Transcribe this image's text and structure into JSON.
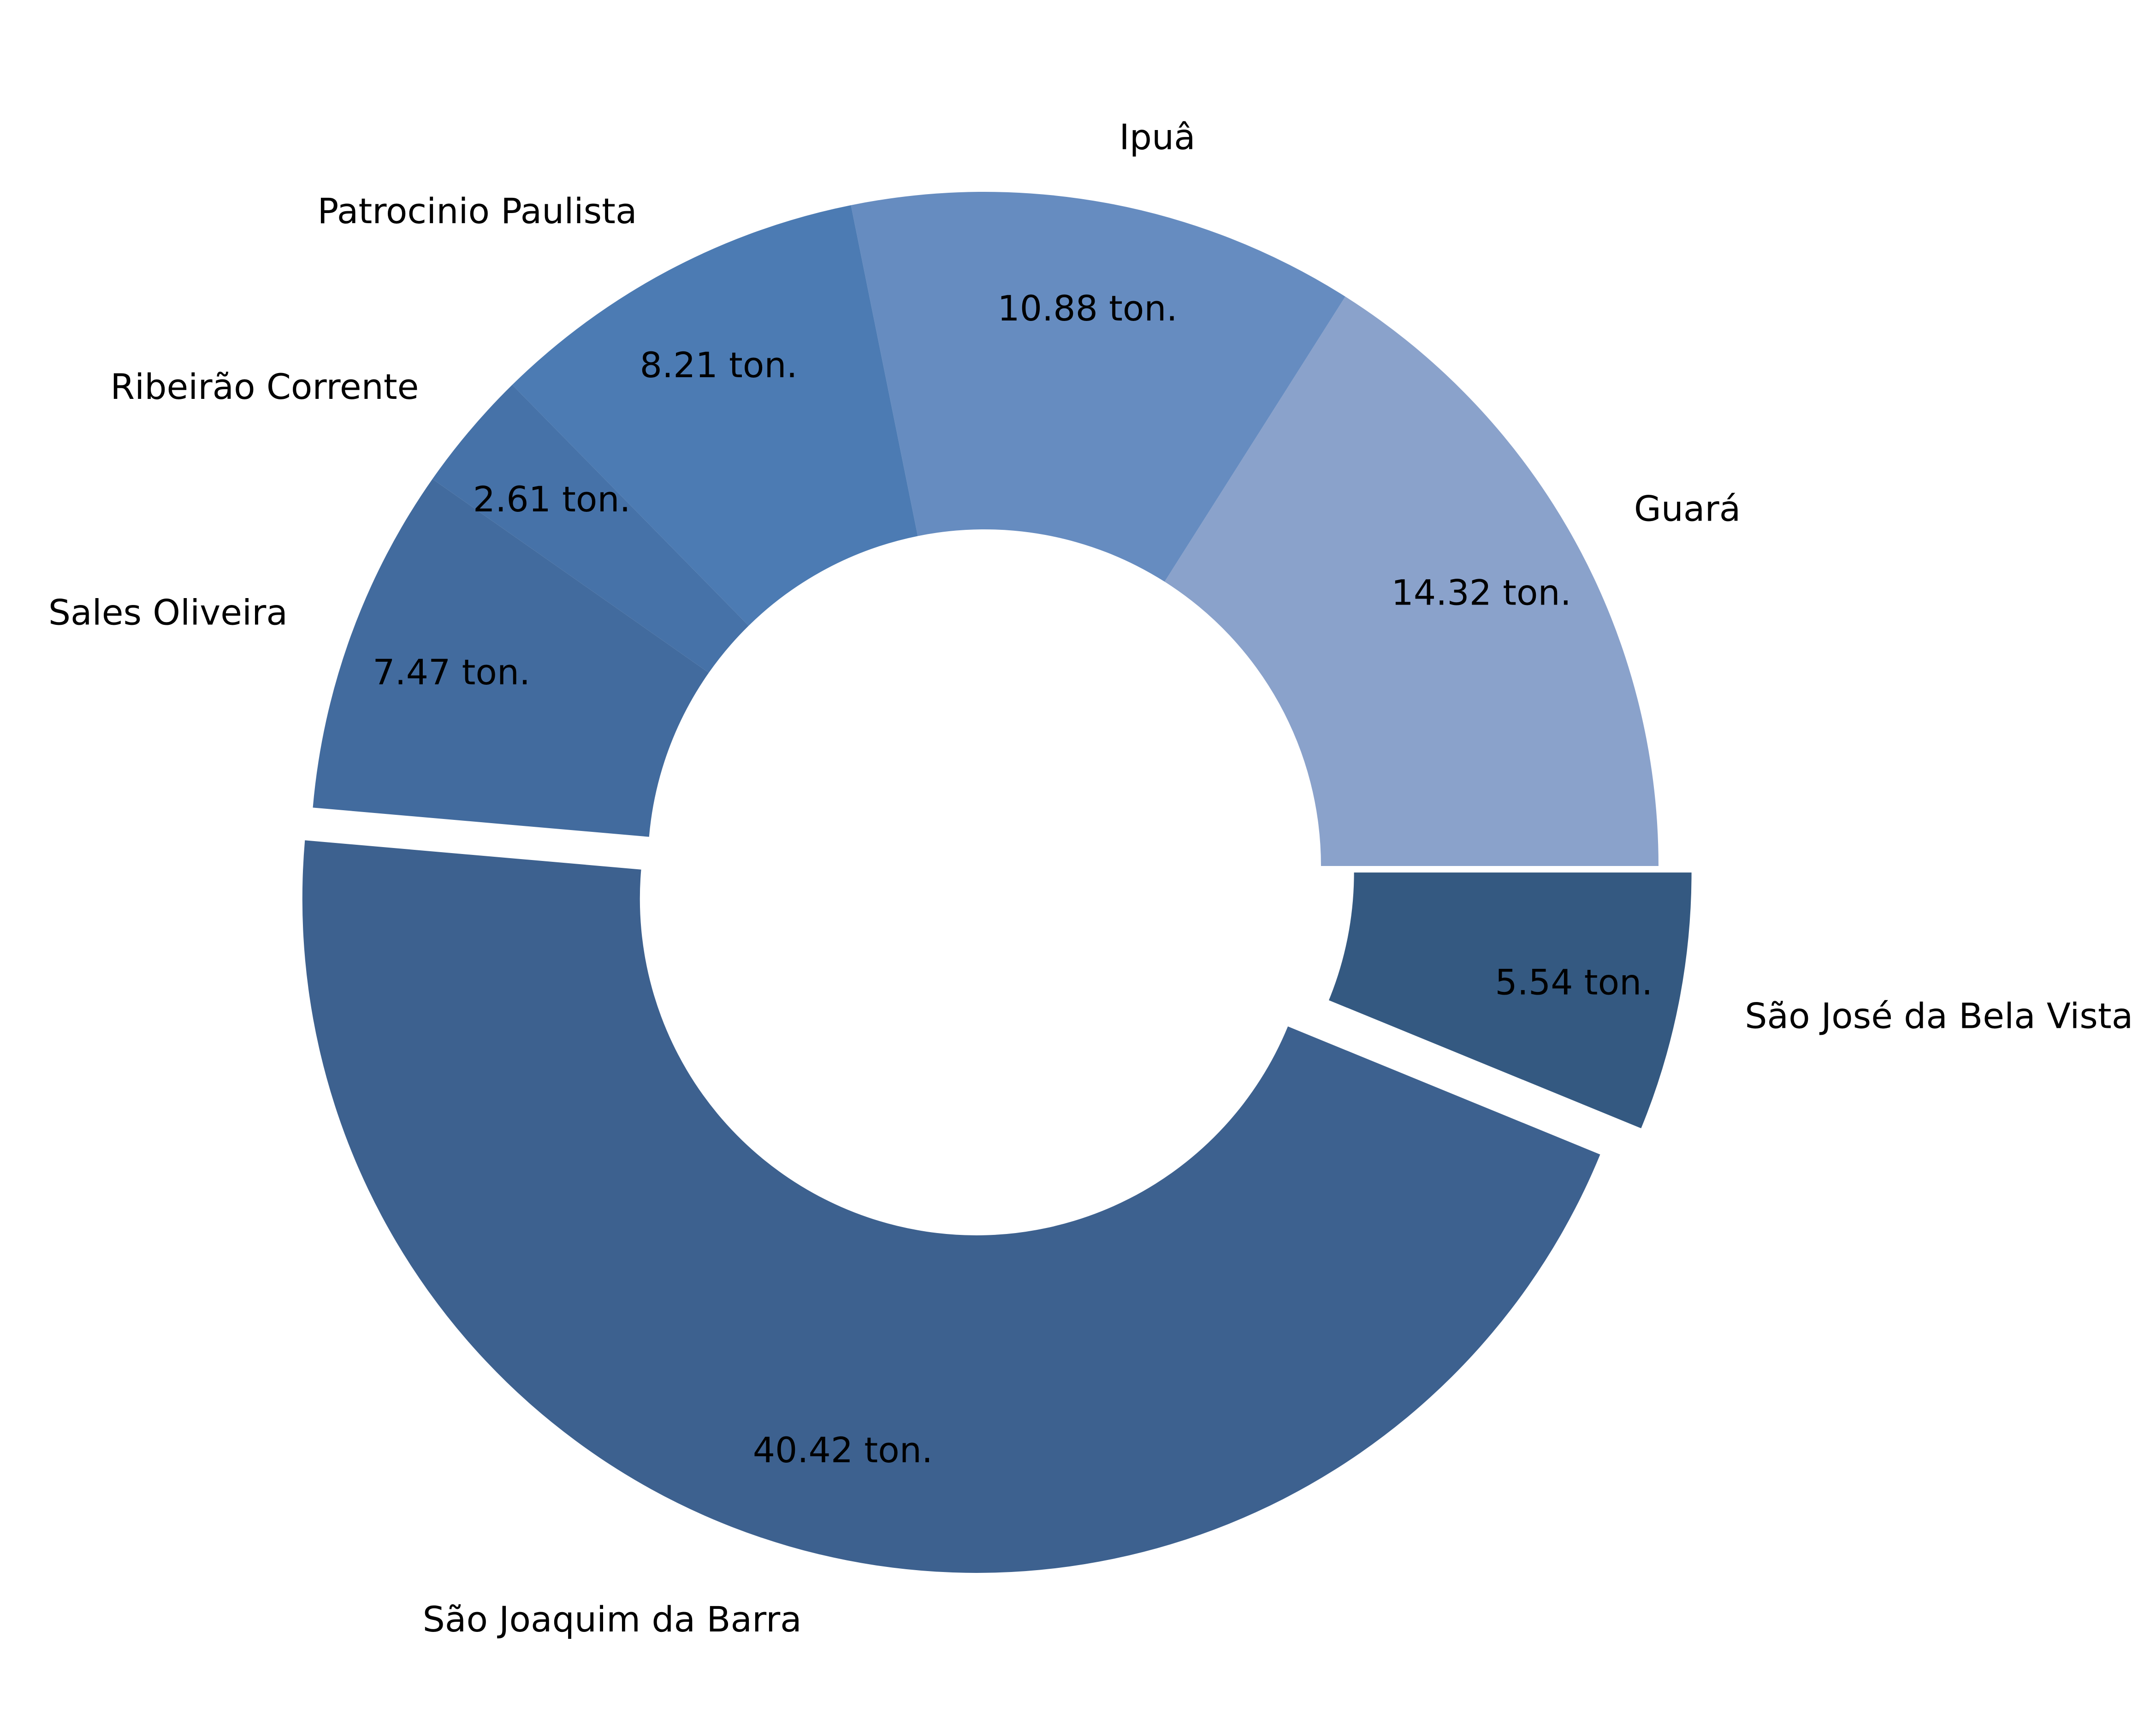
{
  "chart_data": {
    "type": "pie",
    "donut": true,
    "start_angle_deg": 0,
    "direction": "counterclockwise",
    "value_suffix": " ton.",
    "explode": [
      "São Joaquim da Barra",
      "São José da Bela Vista"
    ],
    "slices": [
      {
        "label": "Guará",
        "value": 14.32,
        "color": "#8aa2cb"
      },
      {
        "label": "Ipuâ",
        "value": 10.88,
        "color": "#668cc0"
      },
      {
        "label": "Patrocinio Paulista",
        "value": 8.21,
        "color": "#4c7bb3"
      },
      {
        "label": "Ribeirão Corrente",
        "value": 2.61,
        "color": "#4672a8"
      },
      {
        "label": "Sales Oliveira",
        "value": 7.47,
        "color": "#426b9e"
      },
      {
        "label": "São Joaquim da Barra",
        "value": 40.42,
        "color": "#3d618f"
      },
      {
        "label": "São José da Bela Vista",
        "value": 5.54,
        "color": "#345981"
      }
    ]
  }
}
